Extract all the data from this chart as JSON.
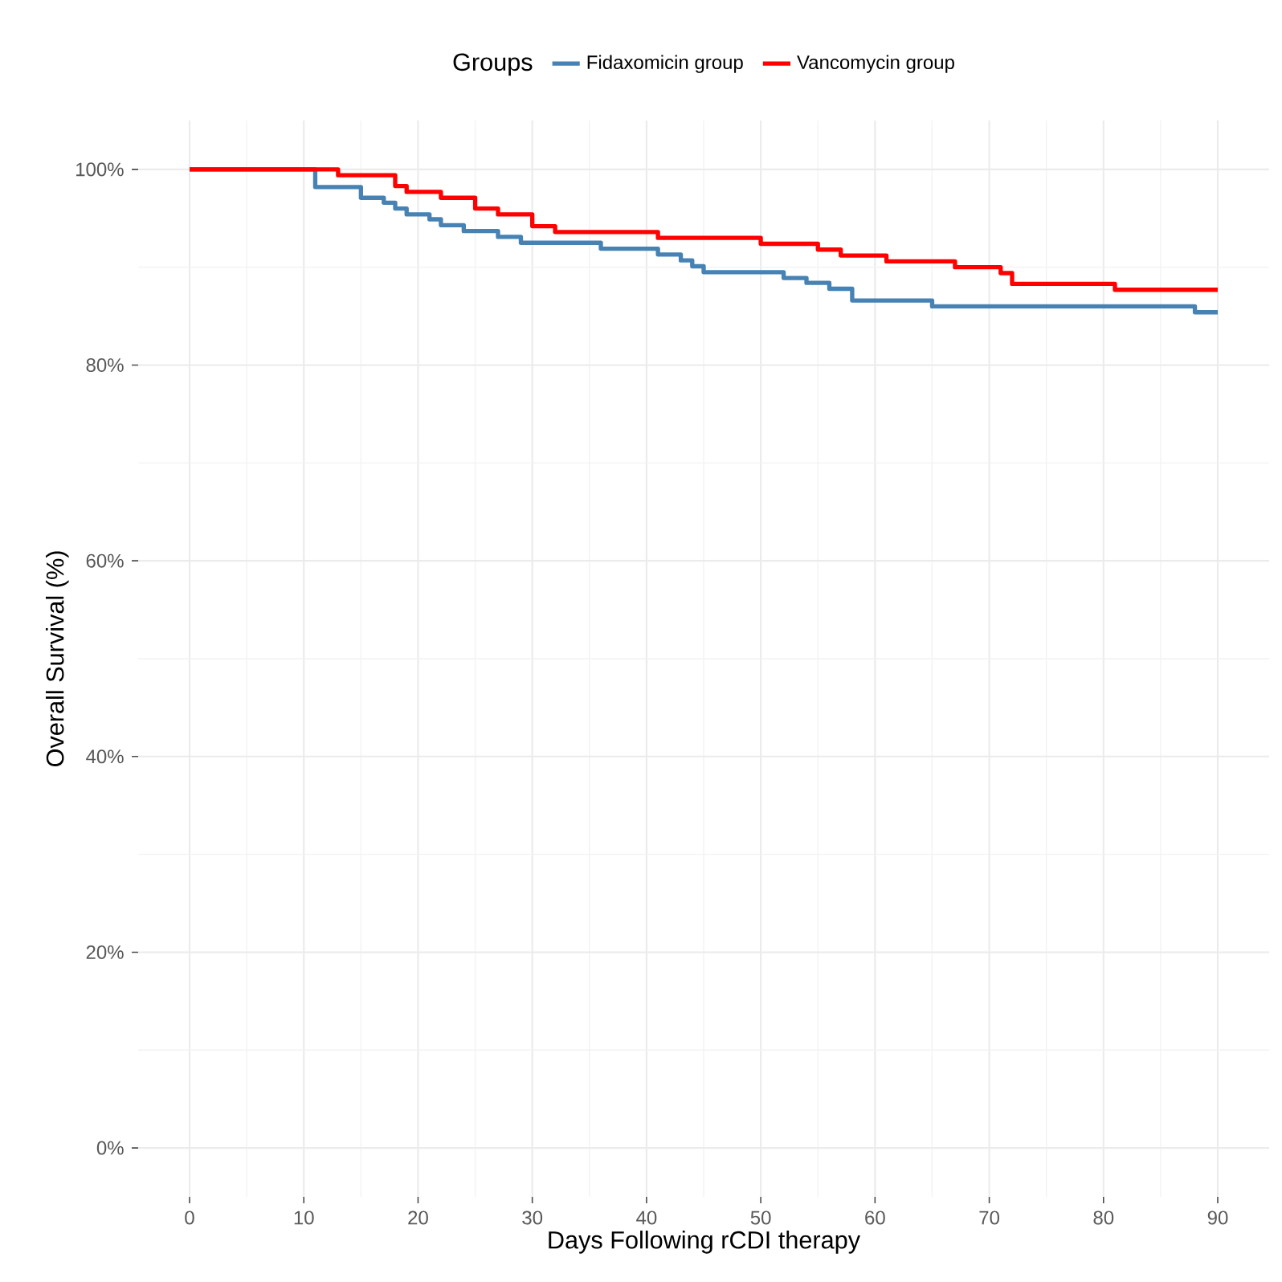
{
  "chart_data": {
    "type": "step",
    "xlabel": "Days Following rCDI therapy",
    "ylabel": "Overall Survival (%)",
    "legend_title": "Groups",
    "legend": "top",
    "grid": true,
    "xlim": [
      -4.5,
      94.5
    ],
    "ylim": [
      -5,
      105
    ],
    "xticks": [
      0,
      10,
      20,
      30,
      40,
      50,
      60,
      70,
      80,
      90
    ],
    "yticks": [
      {
        "value": 0,
        "label": "0%"
      },
      {
        "value": 20,
        "label": "20%"
      },
      {
        "value": 40,
        "label": "40%"
      },
      {
        "value": 60,
        "label": "60%"
      },
      {
        "value": 80,
        "label": "80%"
      },
      {
        "value": 100,
        "label": "100%"
      }
    ],
    "series": [
      {
        "name": "Fidaxomicin group",
        "color": "#4682b4",
        "x": [
          0,
          11,
          15,
          17,
          18,
          19,
          21,
          22,
          24,
          27,
          29,
          36,
          41,
          43,
          44,
          45,
          52,
          54,
          56,
          58,
          65,
          88,
          90
        ],
        "values": [
          100,
          98.2,
          97.1,
          96.6,
          96.0,
          95.4,
          94.9,
          94.3,
          93.7,
          93.1,
          92.5,
          91.9,
          91.3,
          90.7,
          90.1,
          89.5,
          88.9,
          88.4,
          87.8,
          86.6,
          86.0,
          85.4,
          85.4
        ]
      },
      {
        "name": "Vancomycin group",
        "color": "#ff0000",
        "x": [
          0,
          13,
          18,
          19,
          22,
          25,
          27,
          30,
          32,
          41,
          50,
          55,
          57,
          61,
          67,
          71,
          72,
          81,
          90
        ],
        "values": [
          100,
          99.4,
          98.3,
          97.7,
          97.1,
          96.0,
          95.4,
          94.2,
          93.6,
          93.0,
          92.4,
          91.8,
          91.2,
          90.6,
          90.0,
          89.4,
          88.3,
          87.7,
          87.7
        ]
      }
    ]
  }
}
